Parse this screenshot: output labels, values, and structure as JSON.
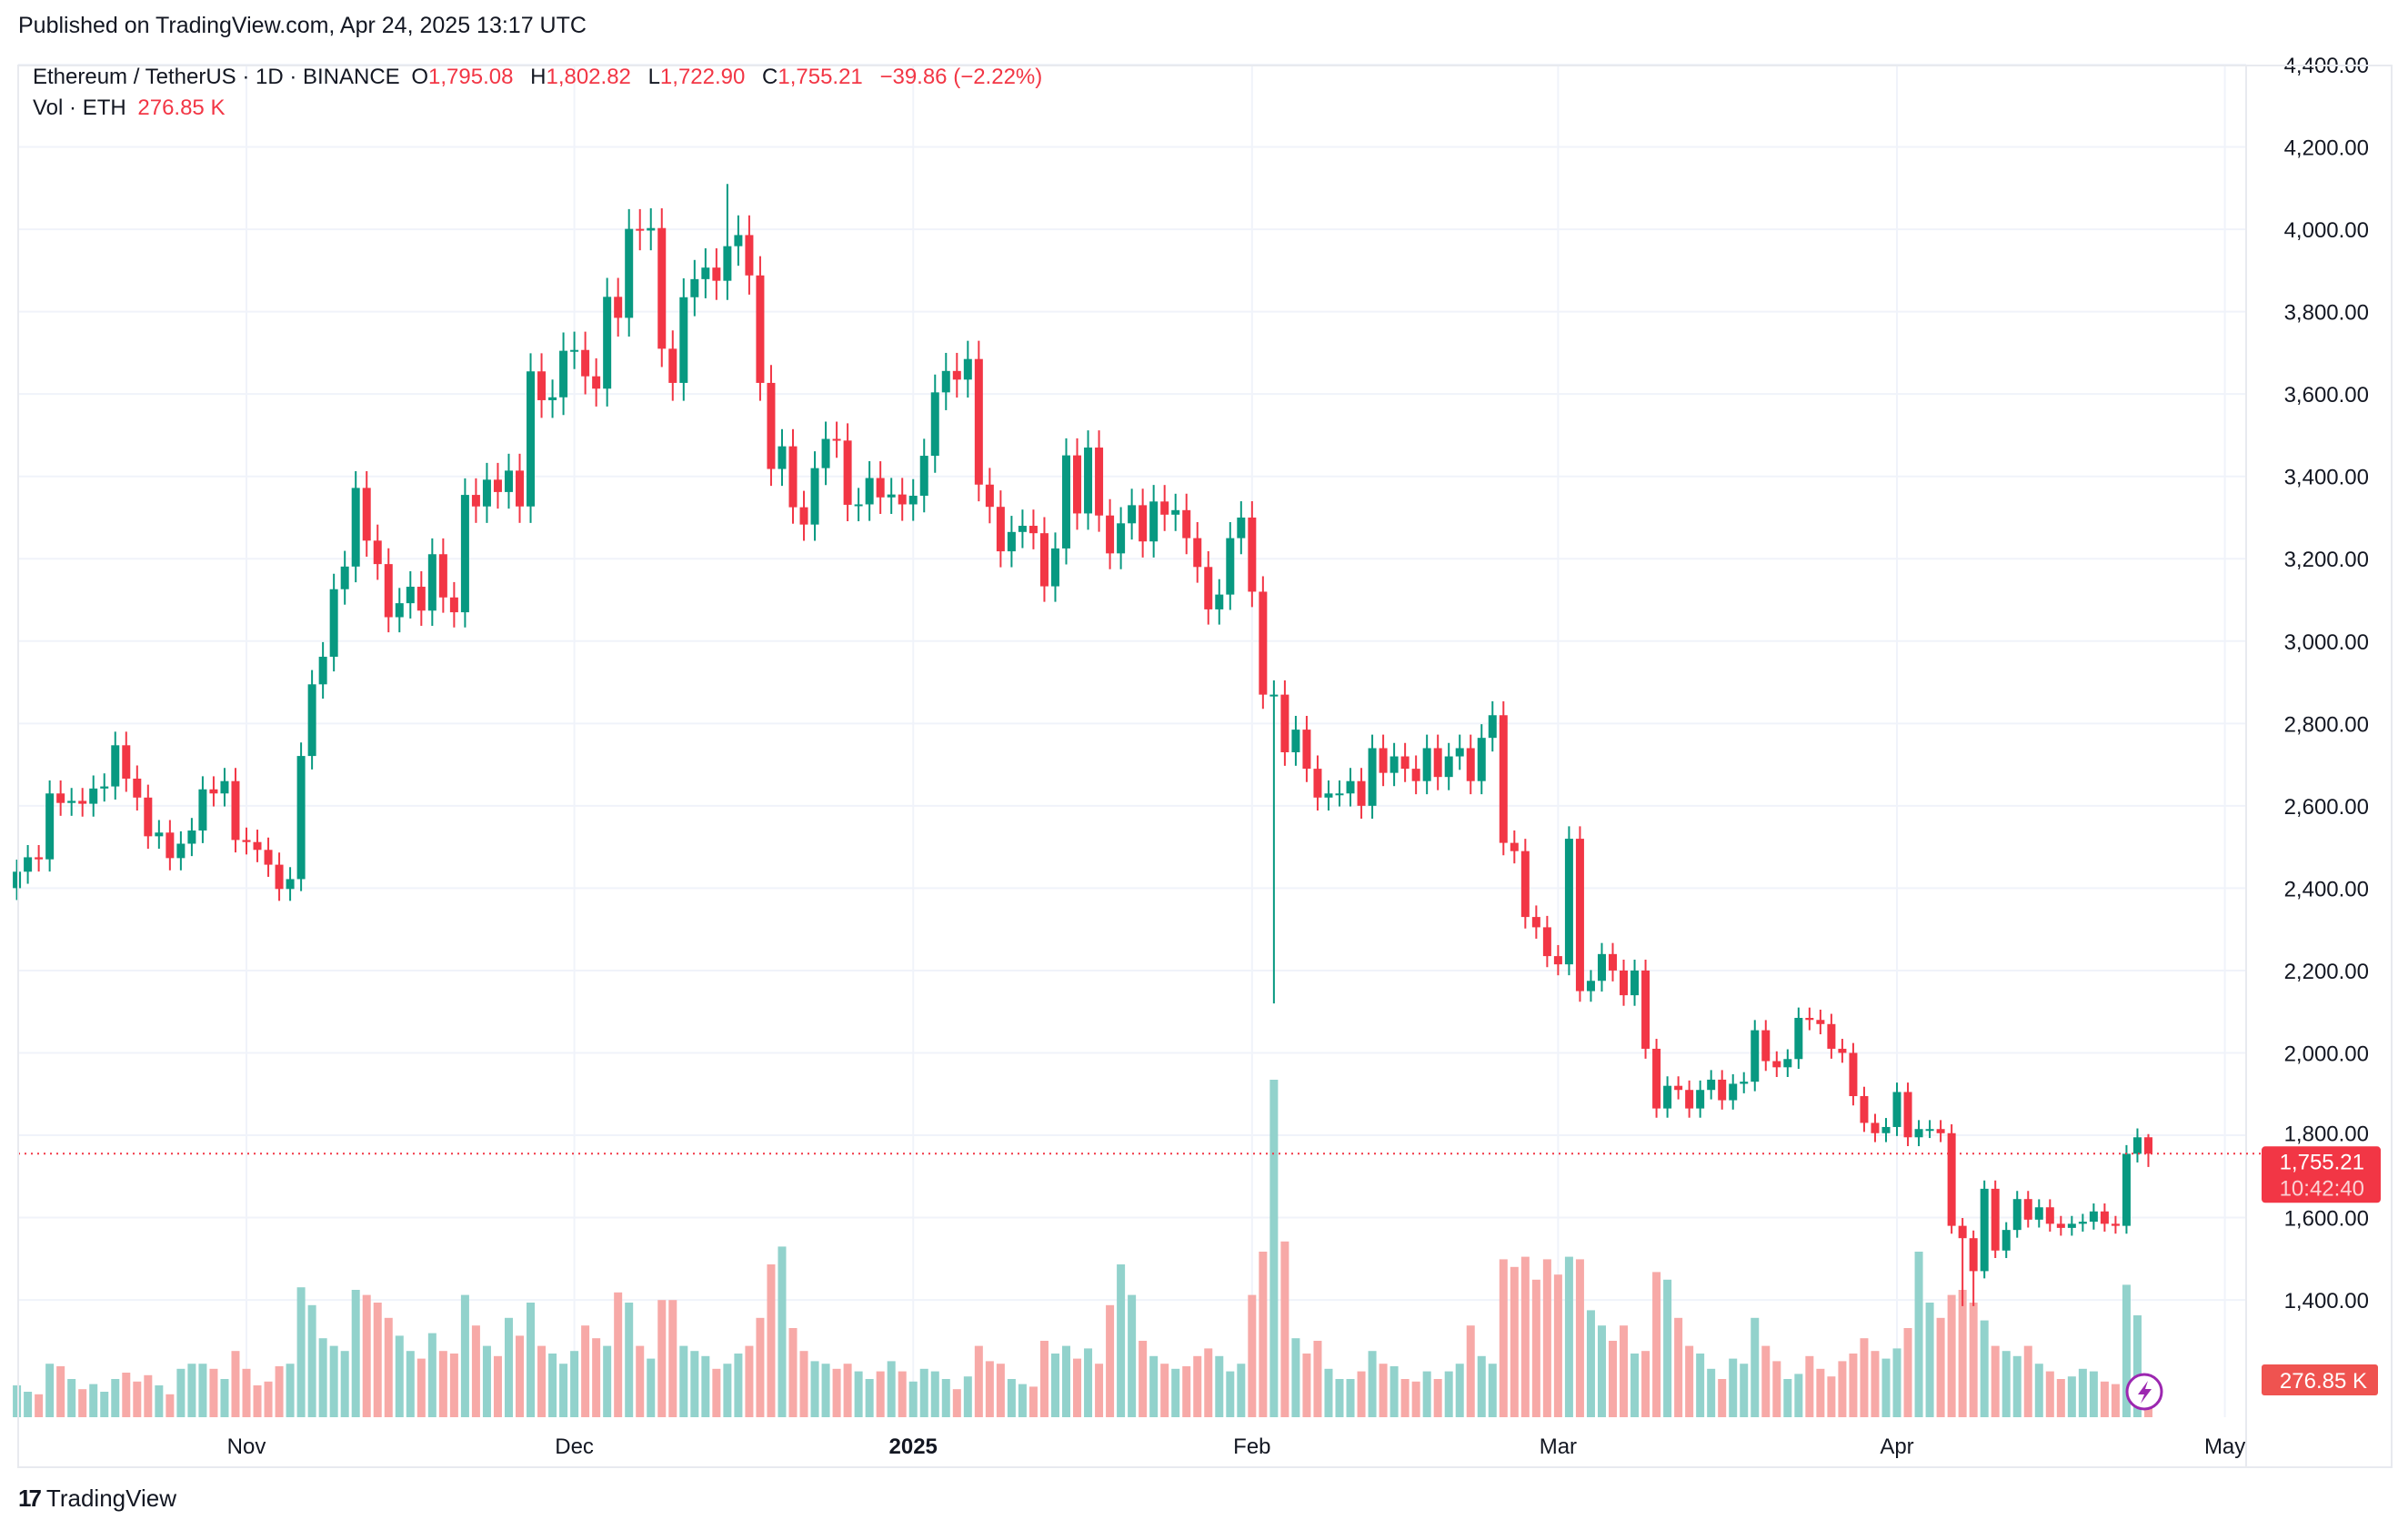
{
  "published": "Published on TradingView.com, Apr 24, 2025 13:17 UTC",
  "legend": {
    "symbol": "Ethereum / TetherUS · 1D · BINANCE",
    "o_label": "O",
    "o": "1,795.08",
    "h_label": "H",
    "h": "1,802.82",
    "l_label": "L",
    "l": "1,722.90",
    "c_label": "C",
    "c": "1,755.21",
    "change": "−39.86 (−2.22%)",
    "vol_label": "Vol · ETH",
    "vol": "276.85 K"
  },
  "price_tag": {
    "price": "1,755.21",
    "countdown": "10:42:40"
  },
  "vol_tag": "276.85 K",
  "brand": "TradingView",
  "colors": {
    "up": "#089981",
    "down": "#f23645",
    "vol_up": "#92d2cc",
    "vol_down": "#f7a9a7",
    "grid": "#f0f3fa"
  },
  "chart_data": {
    "type": "candlestick",
    "title": "Ethereum / TetherUS · 1D · BINANCE",
    "start_date": "2024-10-11",
    "interval": "1D",
    "ylim": [
      1300,
      4450
    ],
    "y_ticks": [
      "4,400.00",
      "4,200.00",
      "4,000.00",
      "3,800.00",
      "3,600.00",
      "3,400.00",
      "3,200.00",
      "3,000.00",
      "2,800.00",
      "2,600.00",
      "2,400.00",
      "2,200.00",
      "2,000.00",
      "1,800.00",
      "1,600.00",
      "1,400.00"
    ],
    "y_tick_values": [
      4400,
      4200,
      4000,
      3800,
      3600,
      3400,
      3200,
      3000,
      2800,
      2600,
      2400,
      2200,
      2000,
      1800,
      1600,
      1400
    ],
    "x_ticks": [
      {
        "label": "Nov",
        "day_index": 21,
        "bold": false
      },
      {
        "label": "Dec",
        "day_index": 51,
        "bold": false
      },
      {
        "label": "2025",
        "day_index": 82,
        "bold": true
      },
      {
        "label": "Feb",
        "day_index": 113,
        "bold": false
      },
      {
        "label": "Mar",
        "day_index": 141,
        "bold": false
      },
      {
        "label": "Apr",
        "day_index": 172,
        "bold": false
      },
      {
        "label": "May",
        "day_index": 202,
        "bold": false
      }
    ],
    "first_open": 2400,
    "close": [
      2440,
      2475,
      2470,
      2630,
      2607,
      2612,
      2605,
      2642,
      2647,
      2747,
      2666,
      2620,
      2526,
      2535,
      2473,
      2508,
      2540,
      2640,
      2630,
      2660,
      2517,
      2512,
      2493,
      2457,
      2398,
      2422,
      2721,
      2895,
      2962,
      3126,
      3181,
      3372,
      3244,
      3187,
      3058,
      3092,
      3132,
      3074,
      3211,
      3106,
      3070,
      3355,
      3327,
      3392,
      3362,
      3414,
      3327,
      3655,
      3585,
      3592,
      3705,
      3707,
      3643,
      3613,
      3836,
      3785,
      4001,
      3997,
      4003,
      3710,
      3627,
      3835,
      3879,
      3907,
      3875,
      3959,
      3986,
      3888,
      3627,
      3418,
      3473,
      3325,
      3283,
      3420,
      3491,
      3487,
      3331,
      3332,
      3396,
      3349,
      3356,
      3332,
      3353,
      3450,
      3604,
      3656,
      3635,
      3685,
      3380,
      3326,
      3218,
      3265,
      3280,
      3262,
      3133,
      3225,
      3451,
      3310,
      3470,
      3305,
      3213,
      3286,
      3330,
      3242,
      3339,
      3307,
      3318,
      3250,
      3180,
      3077,
      3113,
      3250,
      3300,
      3120,
      2870,
      2870,
      2730,
      2785,
      2690,
      2620,
      2630,
      2630,
      2660,
      2600,
      2740,
      2680,
      2720,
      2690,
      2660,
      2740,
      2670,
      2720,
      2740,
      2660,
      2765,
      2820,
      2510,
      2490,
      2330,
      2305,
      2235,
      2215,
      2520,
      2150,
      2175,
      2240,
      2200,
      2140,
      2200,
      2010,
      1865,
      1920,
      1910,
      1865,
      1910,
      1935,
      1885,
      1925,
      1930,
      2055,
      1980,
      1965,
      1985,
      2085,
      2080,
      2070,
      2010,
      2000,
      1895,
      1830,
      1805,
      1820,
      1905,
      1795,
      1815,
      1815,
      1805,
      1580,
      1550,
      1470,
      1670,
      1520,
      1570,
      1645,
      1595,
      1625,
      1585,
      1575,
      1585,
      1590,
      1615,
      1585,
      1580,
      1755,
      1795,
      1755.21
    ],
    "volume_k": [
      250,
      200,
      180,
      420,
      400,
      300,
      220,
      260,
      200,
      300,
      350,
      280,
      330,
      250,
      180,
      380,
      420,
      420,
      380,
      300,
      520,
      380,
      250,
      280,
      400,
      420,
      1020,
      880,
      620,
      560,
      520,
      1000,
      960,
      900,
      780,
      640,
      520,
      460,
      660,
      520,
      500,
      960,
      720,
      560,
      480,
      780,
      640,
      900,
      560,
      500,
      420,
      520,
      720,
      620,
      560,
      980,
      900,
      560,
      460,
      920,
      920,
      560,
      520,
      480,
      380,
      420,
      500,
      560,
      780,
      1200,
      1340,
      700,
      520,
      440,
      420,
      380,
      420,
      360,
      300,
      360,
      440,
      360,
      280,
      380,
      360,
      300,
      220,
      320,
      560,
      440,
      420,
      300,
      260,
      240,
      600,
      500,
      560,
      460,
      540,
      420,
      880,
      1200,
      960,
      600,
      480,
      420,
      380,
      400,
      480,
      540,
      480,
      360,
      420,
      960,
      1300,
      2650,
      1380,
      620,
      500,
      600,
      380,
      300,
      300,
      360,
      520,
      420,
      400,
      300,
      280,
      360,
      300,
      360,
      420,
      720,
      480,
      420,
      1240,
      1180,
      1260,
      1080,
      1240,
      1120,
      1260,
      1240,
      840,
      720,
      600,
      720,
      500,
      520,
      1140,
      1080,
      780,
      560,
      500,
      380,
      300,
      460,
      420,
      780,
      560,
      440,
      300,
      340,
      480,
      380,
      320,
      440,
      500,
      620,
      520,
      460,
      540,
      700,
      1300,
      900,
      780,
      960,
      1000,
      900,
      760,
      560,
      520,
      480,
      560,
      420,
      360,
      300,
      320,
      380,
      360,
      280,
      260,
      1040,
      800,
      276.85
    ],
    "wick_overrides": {
      "65": {
        "high": 4110
      },
      "115": {
        "low": 2120
      },
      "178": {
        "low": 1385
      },
      "179": {
        "low": 1385
      },
      "195": {
        "open": 1795.08,
        "high": 1802.82,
        "low": 1722.9
      }
    },
    "last_price": 1755.21
  }
}
